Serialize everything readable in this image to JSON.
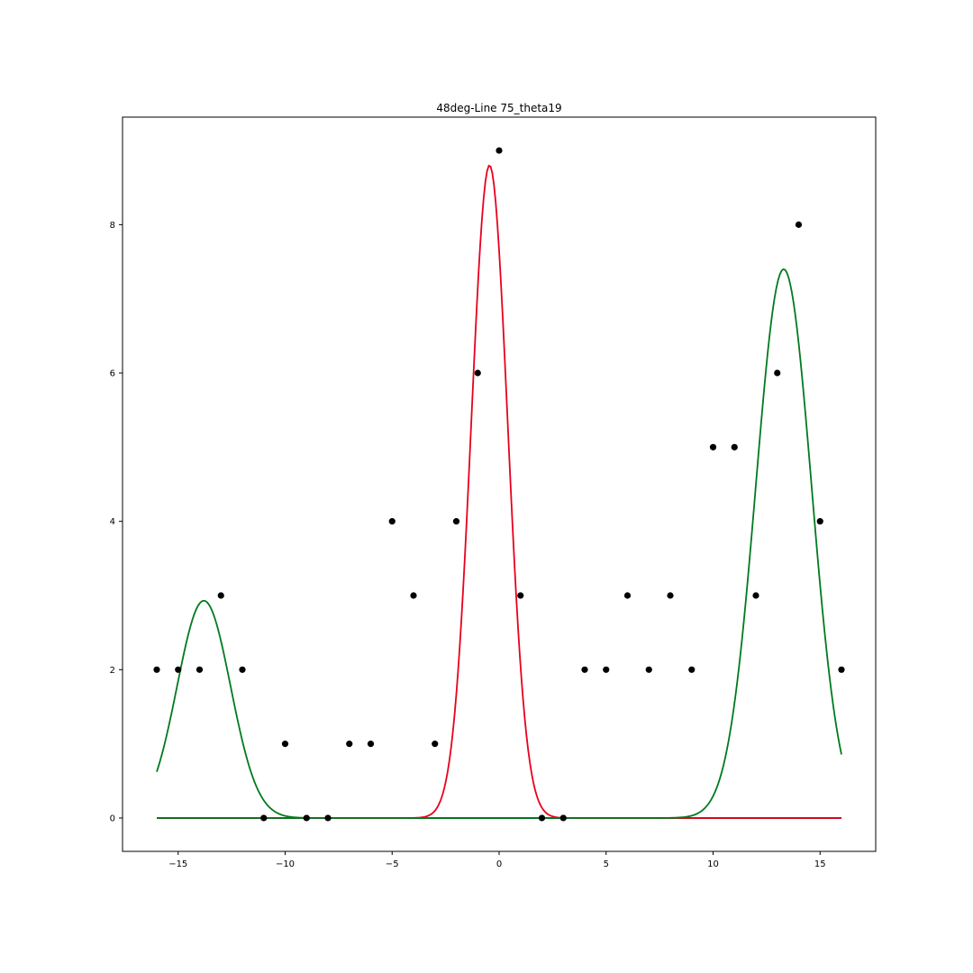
{
  "chart_data": {
    "type": "scatter",
    "title": "48deg-Line 75_theta19",
    "xlabel": "",
    "ylabel": "",
    "xlim": [
      -17.6,
      17.6
    ],
    "ylim": [
      -0.45,
      9.45
    ],
    "grid": false,
    "x_ticks": [
      -15,
      -10,
      -5,
      0,
      5,
      10,
      15
    ],
    "x_tick_labels": [
      "−15",
      "−10",
      "−5",
      "0",
      "5",
      "10",
      "15"
    ],
    "y_ticks": [
      0,
      2,
      4,
      6,
      8
    ],
    "y_tick_labels": [
      "0",
      "2",
      "4",
      "6",
      "8"
    ],
    "points": {
      "color": "#000000",
      "x": [
        -16,
        -15,
        -14,
        -13,
        -12,
        -11,
        -10,
        -9,
        -8,
        -7,
        -6,
        -5,
        -4,
        -3,
        -2,
        -1,
        0,
        1,
        2,
        3,
        4,
        5,
        6,
        7,
        8,
        9,
        10,
        11,
        12,
        13,
        14,
        15,
        16
      ],
      "y": [
        2,
        2,
        2,
        3,
        2,
        0,
        1,
        0,
        0,
        1,
        1,
        4,
        3,
        1,
        4,
        6,
        9,
        3,
        0,
        0,
        2,
        2,
        3,
        2,
        3,
        2,
        5,
        5,
        3,
        6,
        8,
        4,
        2
      ]
    },
    "baseline": {
      "color": "#000000",
      "x_range": [
        -16,
        16
      ],
      "y": 0
    },
    "curves": [
      {
        "color": "#007a1f",
        "amplitude": 2.93,
        "center": -13.8,
        "sigma": 1.25,
        "x_range": [
          -16,
          16
        ]
      },
      {
        "color": "#e8001c",
        "amplitude": 8.8,
        "center": -0.45,
        "sigma": 0.85,
        "x_range": [
          -16,
          16
        ]
      },
      {
        "color": "#007a1f",
        "amplitude": 7.4,
        "center": 13.3,
        "sigma": 1.3,
        "x_range": [
          -16,
          16
        ]
      }
    ]
  }
}
